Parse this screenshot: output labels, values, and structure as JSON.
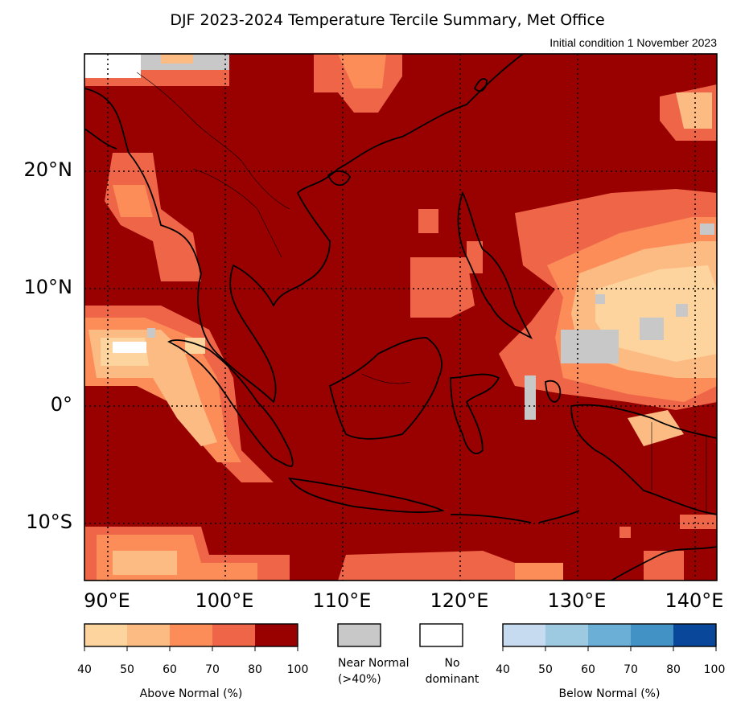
{
  "title": "DJF 2023-2024 Temperature Tercile Summary, Met Office",
  "subtitle": "Initial condition 1 November 2023",
  "map": {
    "lat_labels": [
      {
        "lat": 20,
        "text": "20°N"
      },
      {
        "lat": 10,
        "text": "10°N"
      },
      {
        "lat": 0,
        "text": "0°"
      },
      {
        "lat": -10,
        "text": "10°S"
      }
    ],
    "lon_labels": [
      {
        "lon": 90,
        "text": "90°E"
      },
      {
        "lon": 100,
        "text": "100°E"
      },
      {
        "lon": 110,
        "text": "110°E"
      },
      {
        "lon": 120,
        "text": "120°E"
      },
      {
        "lon": 130,
        "text": "130°E"
      },
      {
        "lon": 140,
        "text": "140°E"
      }
    ],
    "lon_range": [
      88,
      142
    ],
    "lat_range": [
      -15,
      30
    ],
    "dominant_color": "#990000"
  },
  "legend": {
    "above": {
      "label": "Above Normal (%)",
      "ticks": [
        "40",
        "50",
        "60",
        "70",
        "80",
        "100"
      ],
      "colors": [
        "#fdd49e",
        "#fdbb84",
        "#fc8d59",
        "#ef6548",
        "#990000"
      ]
    },
    "near": {
      "label_line1": "Near Normal",
      "label_line2": "(>40%)",
      "color": "#c8c8c8"
    },
    "none": {
      "label_line1": "No",
      "label_line2": "dominant",
      "color": "#ffffff"
    },
    "below": {
      "label": "Below Normal (%)",
      "ticks": [
        "40",
        "50",
        "60",
        "70",
        "80",
        "100"
      ],
      "colors": [
        "#c6dbef",
        "#9ecae1",
        "#6baed6",
        "#4292c6",
        "#08479a"
      ]
    }
  }
}
